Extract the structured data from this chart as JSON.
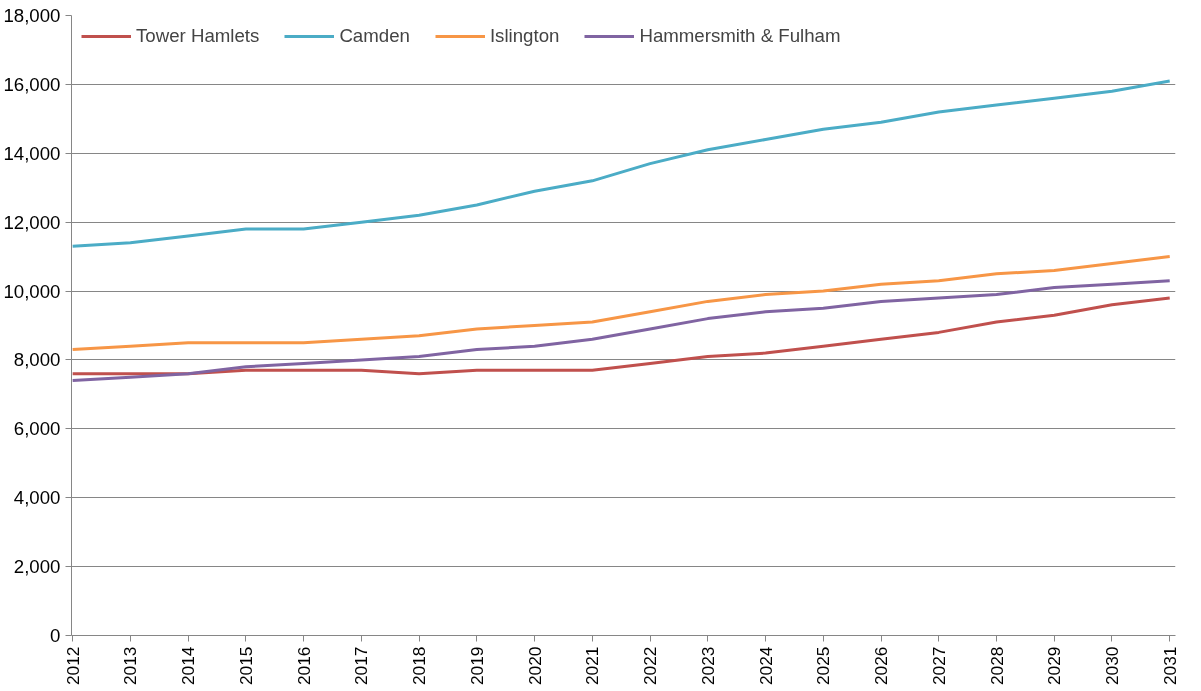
{
  "chart_data": {
    "type": "line",
    "categories": [
      "2012",
      "2013",
      "2014",
      "2015",
      "2016",
      "2017",
      "2018",
      "2019",
      "2020",
      "2021",
      "2022",
      "2023",
      "2024",
      "2025",
      "2026",
      "2027",
      "2028",
      "2029",
      "2030",
      "2031"
    ],
    "series": [
      {
        "name": "Tower Hamlets",
        "color": "#c0504d",
        "values": [
          7600,
          7600,
          7600,
          7700,
          7700,
          7700,
          7600,
          7700,
          7700,
          7700,
          7900,
          8100,
          8200,
          8400,
          8600,
          8800,
          9100,
          9300,
          9600,
          9800
        ]
      },
      {
        "name": "Camden",
        "color": "#4bacc6",
        "values": [
          11300,
          11400,
          11600,
          11800,
          11800,
          12000,
          12200,
          12500,
          12900,
          13200,
          13700,
          14100,
          14400,
          14700,
          14900,
          15200,
          15400,
          15600,
          15800,
          16100
        ]
      },
      {
        "name": "Islington",
        "color": "#f79646",
        "values": [
          8300,
          8400,
          8500,
          8500,
          8500,
          8600,
          8700,
          8900,
          9000,
          9100,
          9400,
          9700,
          9900,
          10000,
          10200,
          10300,
          10500,
          10600,
          10800,
          11000
        ]
      },
      {
        "name": "Hammersmith & Fulham",
        "color": "#8064a2",
        "values": [
          7400,
          7500,
          7600,
          7800,
          7900,
          8000,
          8100,
          8300,
          8400,
          8600,
          8900,
          9200,
          9400,
          9500,
          9700,
          9800,
          9900,
          10100,
          10200,
          10300
        ]
      }
    ],
    "ylim": [
      0,
      18000
    ],
    "yticks": [
      {
        "value": 0,
        "label": "0"
      },
      {
        "value": 2000,
        "label": "2,000"
      },
      {
        "value": 4000,
        "label": "4,000"
      },
      {
        "value": 6000,
        "label": "6,000"
      },
      {
        "value": 8000,
        "label": "8,000"
      },
      {
        "value": 10000,
        "label": "10,000"
      },
      {
        "value": 12000,
        "label": "12,000"
      },
      {
        "value": 14000,
        "label": "14,000"
      },
      {
        "value": 16000,
        "label": "16,000"
      },
      {
        "value": 18000,
        "label": "18,000"
      }
    ],
    "grid": "y",
    "legend": "top",
    "marker": "none",
    "line_style": "solid"
  }
}
